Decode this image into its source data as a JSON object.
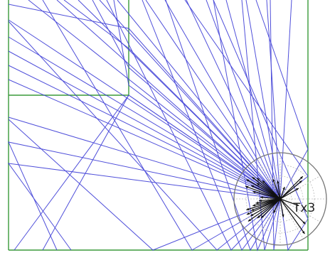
{
  "transmitter": {
    "label": "Tx3"
  },
  "colors": {
    "background": "#ffffff",
    "ray": "#3d3dd6",
    "wall": "#3a9a3a",
    "antenna_circle": "#777777",
    "antenna_grid": "#bdbdbd",
    "arrow": "#111111"
  }
}
